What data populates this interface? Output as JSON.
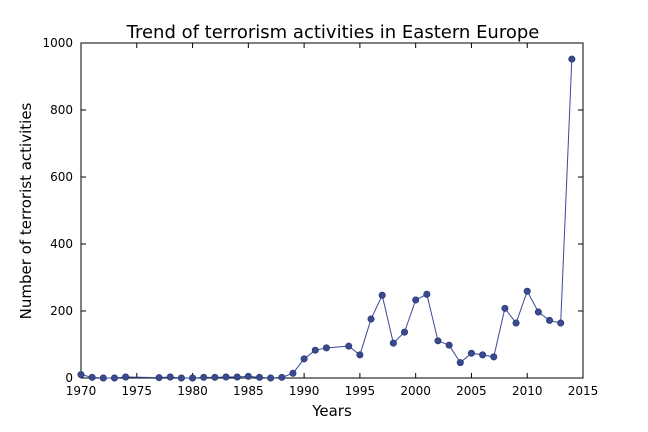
{
  "chart_data": {
    "type": "line",
    "title": "Trend of terrorism activities in Eastern Europe",
    "xlabel": "Years",
    "ylabel": "Number of terrorist activities",
    "xlim": [
      1970,
      2015
    ],
    "ylim": [
      0,
      1000
    ],
    "xticks": [
      1970,
      1975,
      1980,
      1985,
      1990,
      1995,
      2000,
      2005,
      2010,
      2015
    ],
    "yticks": [
      0,
      200,
      400,
      600,
      800,
      1000
    ],
    "grid": false,
    "legend": "none",
    "line_color": "#3a4a9c",
    "marker_color": "#3a4a8f",
    "series": [
      {
        "x": [
          1970,
          1971,
          1972,
          1973,
          1974,
          1977,
          1978,
          1979,
          1980,
          1981,
          1982,
          1983,
          1984,
          1985,
          1986,
          1987,
          1988,
          1989,
          1990,
          1991,
          1992,
          1994,
          1995,
          1996,
          1997,
          1998,
          1999,
          2000,
          2001,
          2002,
          2003,
          2004,
          2005,
          2006,
          2007,
          2008,
          2009,
          2010,
          2011,
          2012,
          2013,
          2014
        ],
        "values": [
          10,
          2,
          0,
          0,
          3,
          1,
          3,
          0,
          0,
          2,
          2,
          3,
          3,
          5,
          2,
          0,
          2,
          14,
          57,
          83,
          90,
          95,
          69,
          176,
          247,
          104,
          137,
          233,
          250,
          111,
          98,
          46,
          74,
          69,
          63,
          208,
          164,
          259,
          197,
          172,
          164,
          952
        ]
      }
    ]
  }
}
